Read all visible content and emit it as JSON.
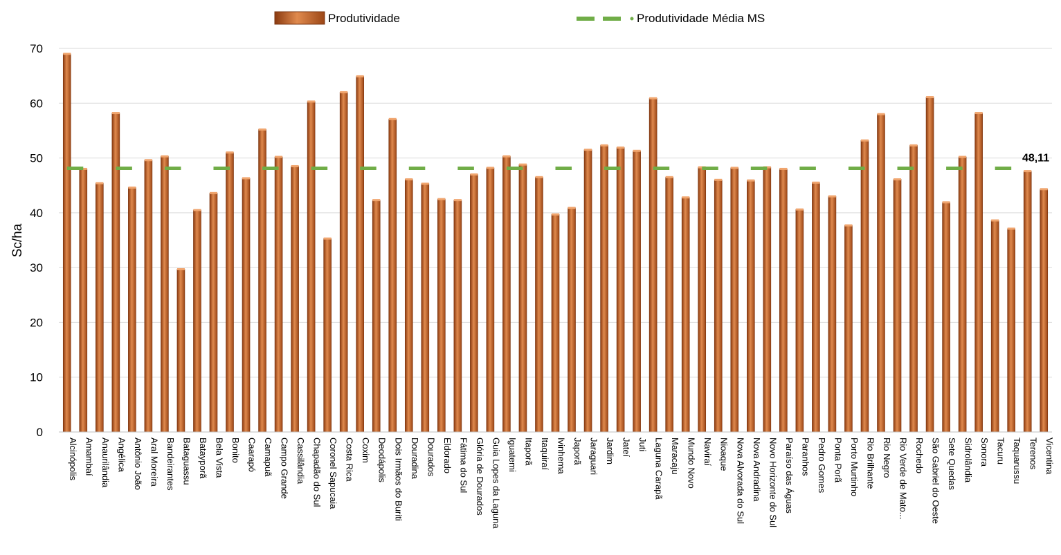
{
  "chart_data": {
    "type": "bar",
    "ylabel": "Sc/ha",
    "ylim": [
      0,
      70
    ],
    "yticks": [
      0,
      10,
      20,
      30,
      40,
      50,
      60,
      70
    ],
    "grid": true,
    "legend_position": "top",
    "categories": [
      "Alcinópolis",
      "Amambaí",
      "Anaurilândia",
      "Angélica",
      "Antônio João",
      "Aral Moreira",
      "Bandeirantes",
      "Bataguassu",
      "Batayporã",
      "Bela Vista",
      "Bonito",
      "Caarapó",
      "Camapuã",
      "Campo Grande",
      "Cassilândia",
      "Chapadão do Sul",
      "Coronel Sapucaia",
      "Costa Rica",
      "Coxim",
      "Deodápolis",
      "Dois Irmãos do Buriti",
      "Douradina",
      "Dourados",
      "Eldorado",
      "Fátima do Sul",
      "Glória de Dourados",
      "Guia Lopes da Laguna",
      "Iguatemi",
      "Itaporã",
      "Itaquiraí",
      "Ivinhema",
      "Japorã",
      "Jaraguari",
      "Jardim",
      "Jateí",
      "Juti",
      "Laguna Carapã",
      "Maracaju",
      "Mundo Novo",
      "Naviraí",
      "Nioaque",
      "Nova Alvorada do Sul",
      "Nova Andradina",
      "Novo Horizonte do Sul",
      "Paraíso das Águas",
      "Paranhos",
      "Pedro Gomes",
      "Ponta Porã",
      "Porto Murtinho",
      "Rio Brilhante",
      "Rio Negro",
      "Rio Verde de Mato...",
      "Rochedo",
      "São Gabriel do Oeste",
      "Sete Quedas",
      "Sidrolândia",
      "Sonora",
      "Tacuru",
      "Taquarussu",
      "Terenos",
      "Vicentina"
    ],
    "series": [
      {
        "name": "Produtividade",
        "color": "#C5632A",
        "values": [
          69.0,
          48.0,
          45.4,
          58.2,
          44.6,
          49.6,
          50.3,
          29.7,
          40.5,
          43.6,
          51.0,
          46.3,
          55.2,
          50.2,
          48.5,
          60.3,
          35.3,
          62.0,
          64.9,
          42.3,
          57.1,
          46.1,
          45.3,
          42.5,
          42.3,
          47.0,
          48.2,
          50.3,
          48.8,
          46.5,
          39.7,
          40.9,
          51.5,
          52.3,
          51.9,
          51.3,
          60.9,
          46.5,
          42.8,
          48.3,
          46.0,
          48.2,
          45.9,
          48.3,
          48.0,
          40.6,
          45.5,
          43.0,
          37.7,
          53.2,
          58.0,
          46.1,
          52.3,
          61.1,
          41.9,
          50.2,
          58.2,
          38.6,
          37.1,
          47.6,
          44.3
        ]
      },
      {
        "name": "Produtividade Média MS",
        "type": "line",
        "style": "dashed",
        "color": "#70AD47",
        "value": 48.11,
        "value_label": "48,11"
      }
    ]
  }
}
